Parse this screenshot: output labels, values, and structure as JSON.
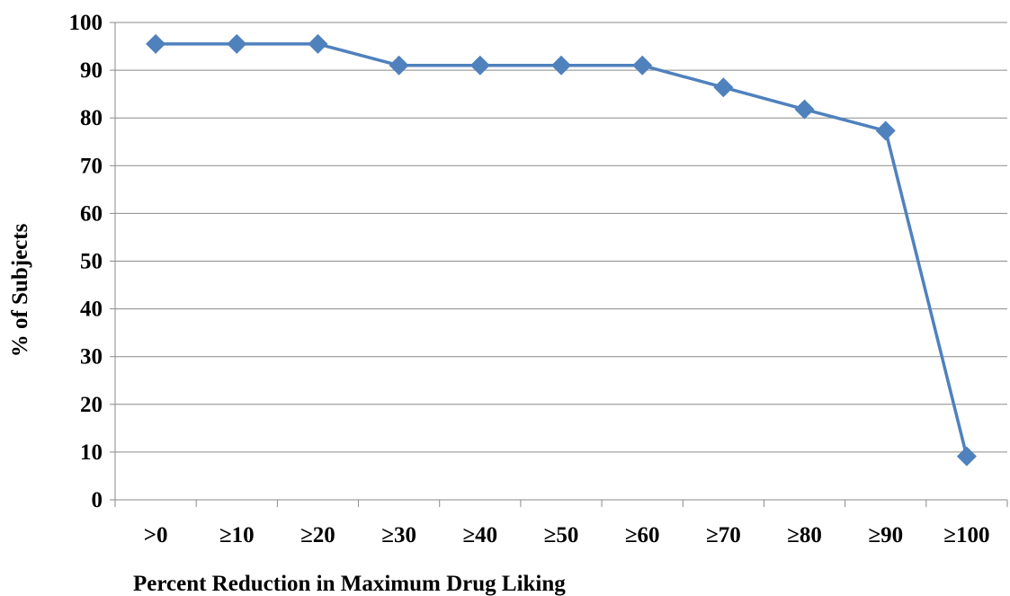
{
  "chart_data": {
    "type": "line",
    "title": "",
    "xlabel": "Percent Reduction in Maximum Drug Liking",
    "ylabel": "% of Subjects",
    "categories": [
      ">0",
      "≥10",
      "≥20",
      "≥30",
      "≥40",
      "≥50",
      "≥60",
      "≥70",
      "≥80",
      "≥90",
      "≥100"
    ],
    "series": [
      {
        "values": [
          95.5,
          95.5,
          95.5,
          91,
          91,
          91,
          91,
          86.4,
          81.8,
          77.3,
          9.1
        ],
        "color": "#4F81BD",
        "marker": "diamond"
      }
    ],
    "ylim": [
      0,
      100
    ],
    "yticks": [
      0,
      10,
      20,
      30,
      40,
      50,
      60,
      70,
      80,
      90,
      100
    ],
    "grid": "horizontal",
    "legend": "none"
  }
}
